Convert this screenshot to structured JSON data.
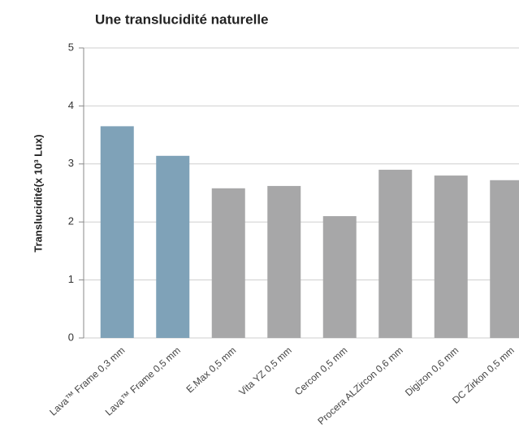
{
  "chart_data": {
    "type": "bar",
    "title": "Une translucidité naturelle",
    "y_label": "Translucidité(x 10³ Lux)",
    "categories": [
      "Lava™ Frame 0,3 mm",
      "Lava™ Frame 0,5 mm",
      "E.Max 0,5 mm",
      "Vita YZ 0,5 mm",
      "Cercon 0,5 mm",
      "Procera ALZircon 0,6 mm",
      "Digizon 0,6 mm",
      "DC Zirkon 0,5 mm"
    ],
    "values": [
      3.65,
      3.14,
      2.58,
      2.62,
      2.1,
      2.9,
      2.8,
      2.72
    ],
    "colors": [
      "#7fa2b8",
      "#7fa2b8",
      "#a7a7a8",
      "#a7a7a8",
      "#a7a7a8",
      "#a7a7a8",
      "#a7a7a8",
      "#a7a7a8"
    ],
    "ylim": [
      0,
      5
    ],
    "yticks": [
      0,
      1,
      2,
      3,
      4,
      5
    ],
    "grid": true
  }
}
